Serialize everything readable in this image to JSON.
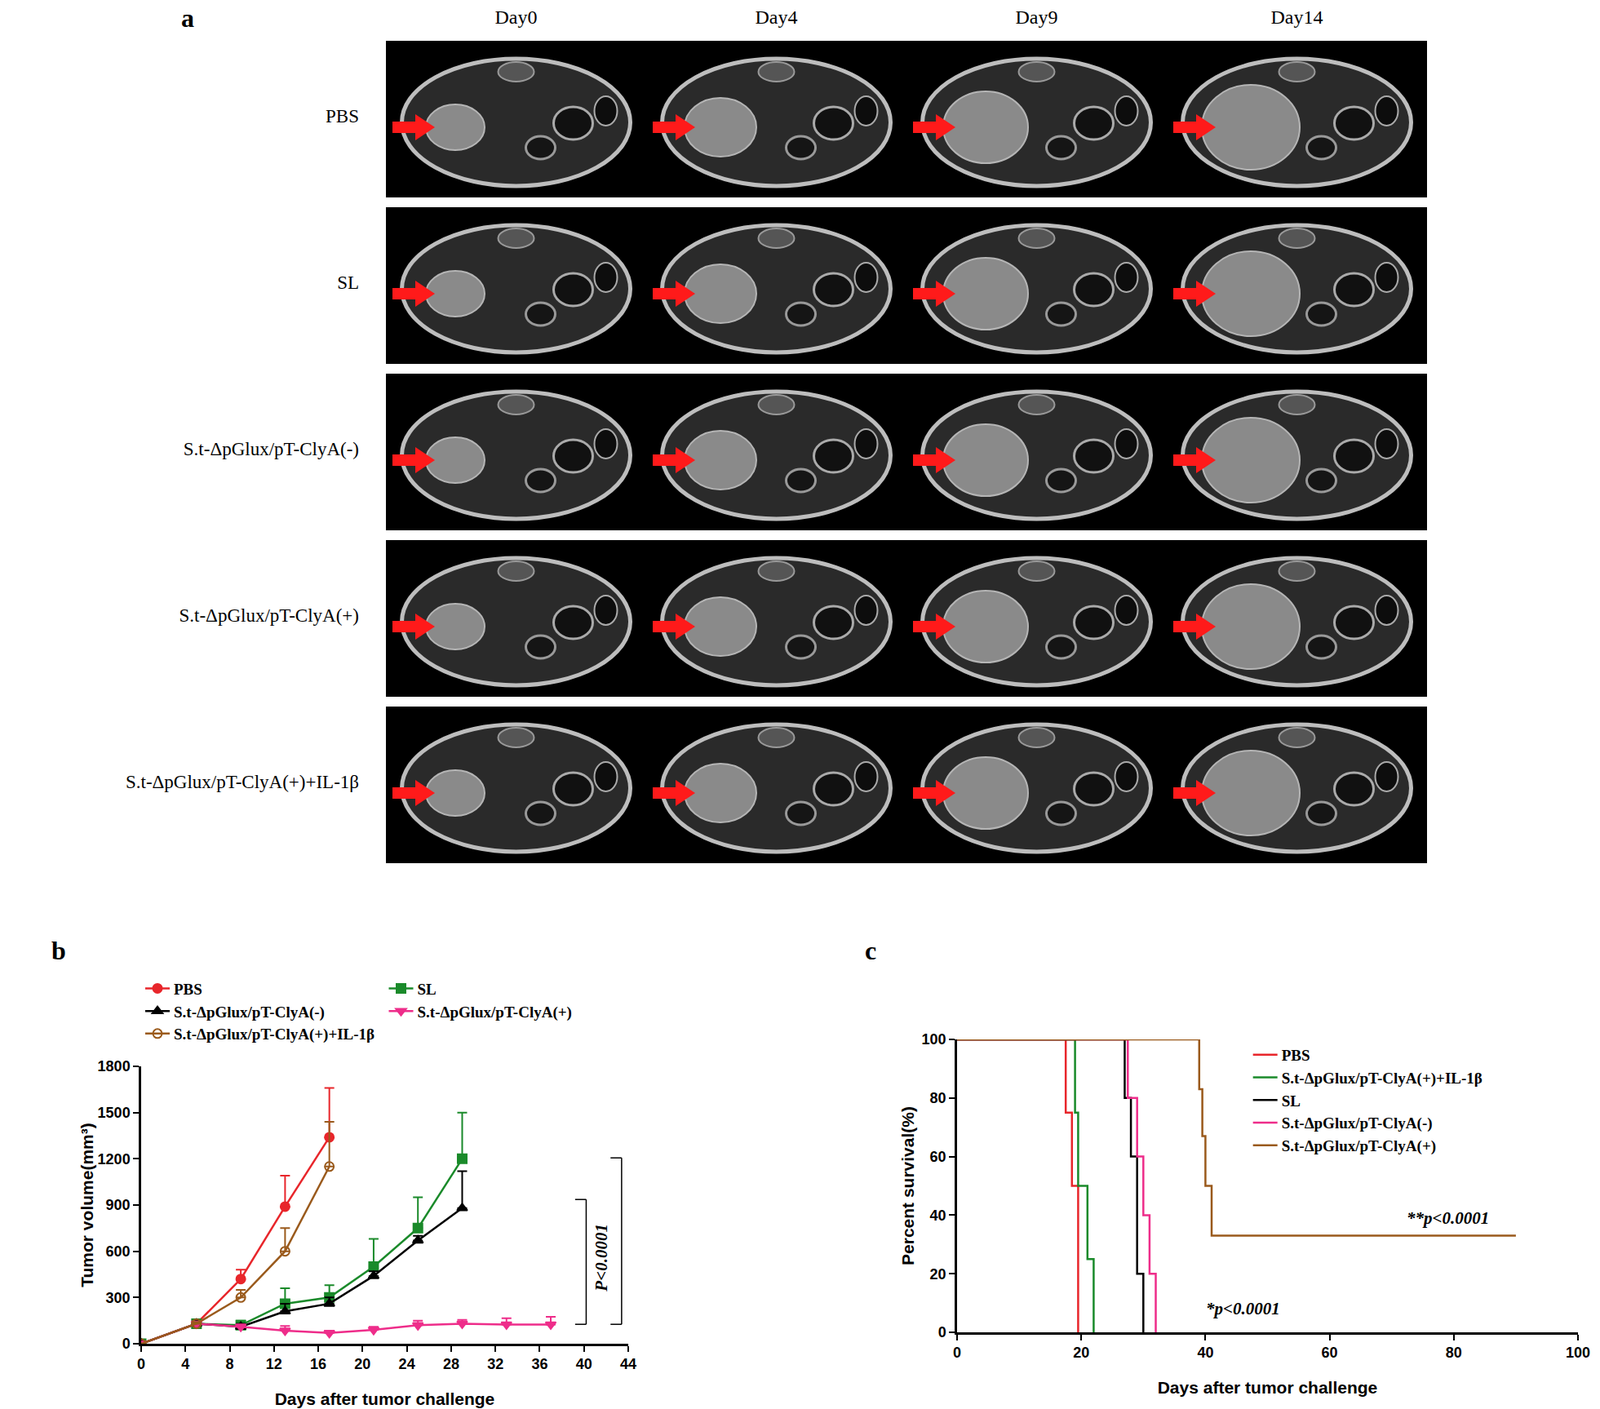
{
  "panel_a": {
    "label": "a",
    "columns": [
      "Day0",
      "Day4",
      "Day9",
      "Day14"
    ],
    "rows": [
      "PBS",
      "SL",
      "S.t-ΔpGlux/pT-ClyA(-)",
      "S.t-ΔpGlux/pT-ClyA(+)",
      "S.t-ΔpGlux/pT-ClyA(+)+IL-1β"
    ]
  },
  "chart_data": [
    {
      "type": "line",
      "title": "b",
      "x_title": "Days after tumor challenge",
      "y_title": "Tumor volume(mm³)",
      "xlim": [
        0,
        44
      ],
      "xticks": [
        0,
        4,
        8,
        12,
        16,
        20,
        24,
        28,
        32,
        36,
        40,
        44
      ],
      "ylim": [
        0,
        1800
      ],
      "yticks": [
        0,
        300,
        600,
        900,
        1200,
        1500,
        1800
      ],
      "grid": false,
      "legend": "top",
      "series": [
        {
          "name": "PBS",
          "color": "#e8262b",
          "marker": "circle",
          "x": [
            0,
            5,
            9,
            13,
            17
          ],
          "values": [
            0,
            130,
            420,
            890,
            1340
          ],
          "errors": [
            0,
            10,
            60,
            200,
            320
          ]
        },
        {
          "name": "SL",
          "color": "#1a8a2a",
          "marker": "square",
          "x": [
            0,
            5,
            9,
            13,
            17,
            21,
            25,
            29
          ],
          "values": [
            0,
            130,
            120,
            260,
            300,
            500,
            750,
            1200
          ],
          "errors": [
            0,
            10,
            30,
            100,
            80,
            180,
            200,
            300
          ]
        },
        {
          "name": "S.t-ΔpGlux/pT-ClyA(-)",
          "color": "#000000",
          "marker": "triangle-up",
          "x": [
            0,
            5,
            9,
            13,
            17,
            21,
            25,
            29
          ],
          "values": [
            0,
            130,
            110,
            210,
            260,
            440,
            670,
            880
          ],
          "errors": [
            0,
            10,
            20,
            50,
            40,
            30,
            30,
            240
          ]
        },
        {
          "name": "S.t-ΔpGlux/pT-ClyA(+)",
          "color": "#ee2d8a",
          "marker": "triangle-down",
          "x": [
            0,
            5,
            9,
            13,
            17,
            21,
            25,
            29,
            33,
            37
          ],
          "values": [
            0,
            130,
            110,
            85,
            70,
            90,
            120,
            130,
            125,
            125
          ],
          "errors": [
            0,
            10,
            15,
            30,
            10,
            20,
            30,
            25,
            40,
            50
          ]
        },
        {
          "name": "S.t-ΔpGlux/pT-ClyA(+)+IL-1β",
          "color": "#9a5a1c",
          "marker": "circle-open",
          "x": [
            0,
            5,
            9,
            13,
            17
          ],
          "values": [
            0,
            130,
            300,
            600,
            1150
          ],
          "errors": [
            0,
            10,
            50,
            150,
            290
          ]
        }
      ],
      "annotations": [
        {
          "text": "P<0.0001",
          "x": 41.6,
          "y": 560
        },
        {
          "text": "P<0.0001",
          "x": 44.8,
          "y": 760
        }
      ]
    },
    {
      "type": "step",
      "title": "c",
      "x_title": "Days after tumor challenge",
      "y_title": "Percent survival(%)",
      "xlim": [
        0,
        100
      ],
      "xticks": [
        0,
        20,
        40,
        60,
        80,
        100
      ],
      "ylim": [
        0,
        100
      ],
      "yticks": [
        0,
        20,
        40,
        60,
        80,
        100
      ],
      "grid": false,
      "legend": "top right",
      "series": [
        {
          "name": "PBS",
          "color": "#e8262b",
          "x": [
            0,
            17.5,
            18.5,
            19.5
          ],
          "values": [
            100,
            75,
            50,
            0
          ]
        },
        {
          "name": "S.t-ΔpGlux/pT-ClyA(+)+IL-1β",
          "color": "#1a8a2a",
          "x": [
            0,
            19,
            19.5,
            21,
            22
          ],
          "values": [
            100,
            75,
            50,
            25,
            0
          ]
        },
        {
          "name": "SL",
          "color": "#000000",
          "x": [
            0,
            27,
            28,
            29,
            30
          ],
          "values": [
            100,
            80,
            60,
            20,
            0
          ]
        },
        {
          "name": "S.t-ΔpGlux/pT-ClyA(-)",
          "color": "#ee2d8a",
          "x": [
            0,
            27.5,
            29,
            30,
            31,
            32
          ],
          "values": [
            100,
            80,
            60,
            40,
            20,
            0
          ]
        },
        {
          "name": "S.t-ΔpGlux/pT-ClyA(+)",
          "color": "#9a5a1c",
          "x": [
            0,
            39,
            39.5,
            40,
            41,
            90
          ],
          "values": [
            100,
            83,
            67,
            50,
            33,
            33
          ]
        }
      ],
      "annotations": [
        {
          "text": "**p<0.0001",
          "x": 79,
          "y": 39
        },
        {
          "text": "*p<0.0001",
          "x": 46,
          "y": 8
        }
      ]
    }
  ]
}
